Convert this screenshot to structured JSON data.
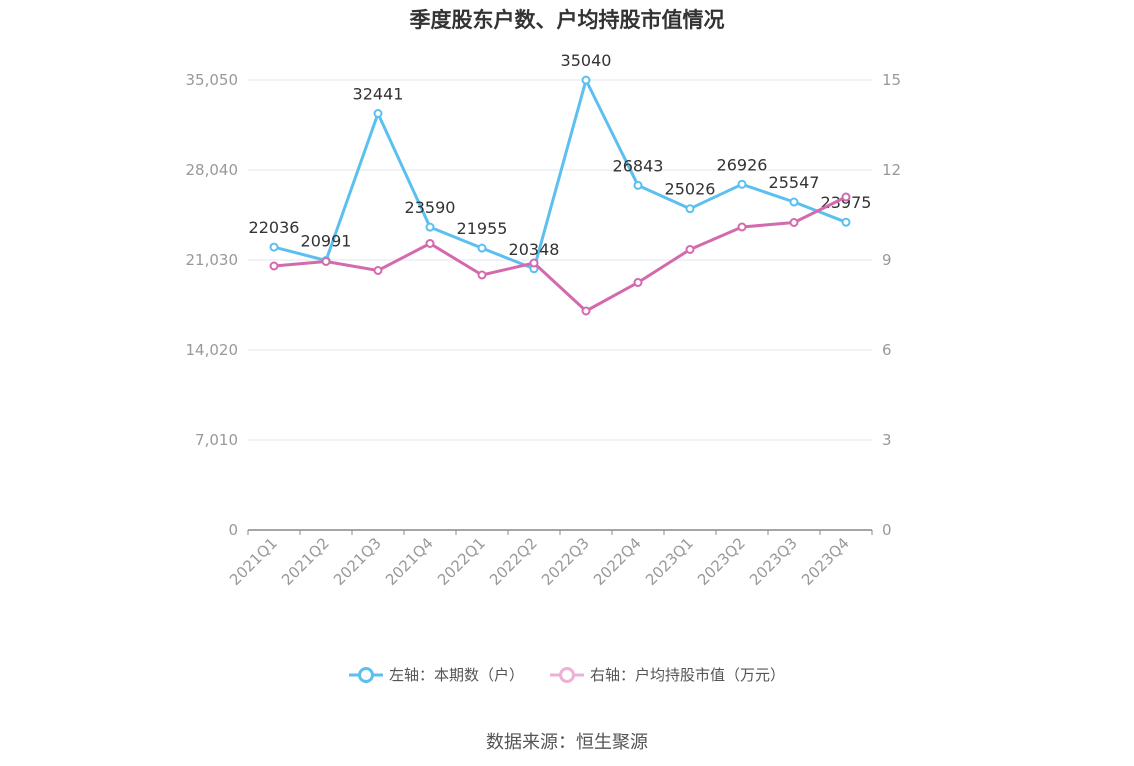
{
  "chart_data": {
    "type": "line",
    "title": "季度股东户数、户均持股市值情况",
    "categories": [
      "2021Q1",
      "2021Q2",
      "2021Q3",
      "2021Q4",
      "2022Q1",
      "2022Q2",
      "2022Q3",
      "2022Q4",
      "2023Q1",
      "2023Q2",
      "2023Q3",
      "2023Q4"
    ],
    "y_left": {
      "ticks": [
        "0",
        "7,010",
        "14,020",
        "21,030",
        "28,040",
        "35,050"
      ],
      "ylim": [
        0,
        35050
      ]
    },
    "y_right": {
      "ticks": [
        "0",
        "3",
        "6",
        "9",
        "12",
        "15"
      ],
      "ylim": [
        0,
        15
      ]
    },
    "series": [
      {
        "name": "左轴：本期数（户）",
        "axis": "left",
        "color": "#5bc0f0",
        "values": [
          22036,
          20991,
          32441,
          23590,
          21955,
          20348,
          35040,
          26843,
          25026,
          26926,
          25547,
          23975
        ],
        "labels": [
          "22036",
          "20991",
          "32441",
          "23590",
          "21955",
          "20348",
          "35040",
          "26843",
          "25026",
          "26926",
          "25547",
          "23975"
        ]
      },
      {
        "name": "右轴：户均持股市值（万元）",
        "axis": "right",
        "color": "#d46aae",
        "values": [
          8.8,
          8.95,
          8.65,
          9.55,
          8.5,
          8.9,
          7.3,
          8.25,
          9.35,
          10.1,
          10.25,
          11.1
        ]
      }
    ],
    "grid": true,
    "legend_position": "bottom"
  },
  "source": "数据来源：恒生聚源"
}
